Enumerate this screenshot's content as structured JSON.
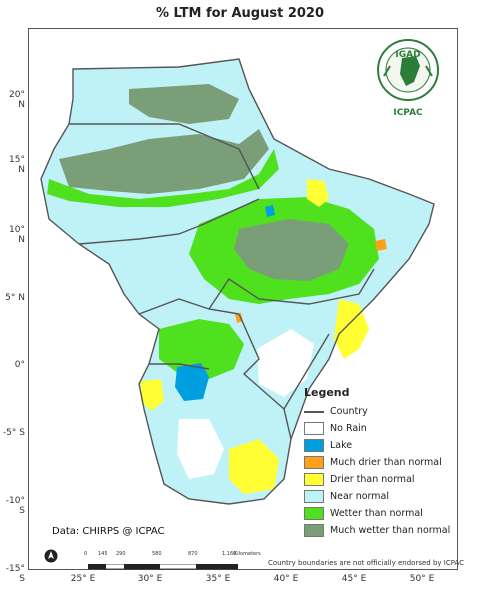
{
  "title": "% LTM  for  August 2020",
  "axes": {
    "y_ticks": [
      "20° N",
      "15° N",
      "10° N",
      "5° N",
      "0°",
      "-5° S",
      "-10° S",
      "-15° S"
    ],
    "x_ticks": [
      "25° E",
      "30° E",
      "35° E",
      "40° E",
      "45° E",
      "50° E"
    ]
  },
  "legend": {
    "title": "Legend",
    "country_label": "Country",
    "items": [
      {
        "label": "No Rain",
        "color": "#ffffff"
      },
      {
        "label": "Lake",
        "color": "#00a0e0"
      },
      {
        "label": "Much drier than normal",
        "color": "#ff9f1c"
      },
      {
        "label": "Drier than normal",
        "color": "#ffff33"
      },
      {
        "label": "Near normal",
        "color": "#bff2f7"
      },
      {
        "label": "Wetter than normal",
        "color": "#4fe01e"
      },
      {
        "label": "Much wetter than normal",
        "color": "#7a9f78"
      }
    ]
  },
  "logo": {
    "top_text": "IGAD",
    "bottom_text": "ICPAC"
  },
  "credit": "Data: CHIRPS @ ICPAC",
  "scale": {
    "labels": [
      "0",
      "145",
      "290",
      "580",
      "870",
      "1,160"
    ],
    "unit": "Kilometers"
  },
  "disclaimer": "Country boundaries are not officially endorsed by ICPAC",
  "icons": {
    "north_arrow": "north-arrow-icon",
    "logo": "igad-logo-icon"
  }
}
